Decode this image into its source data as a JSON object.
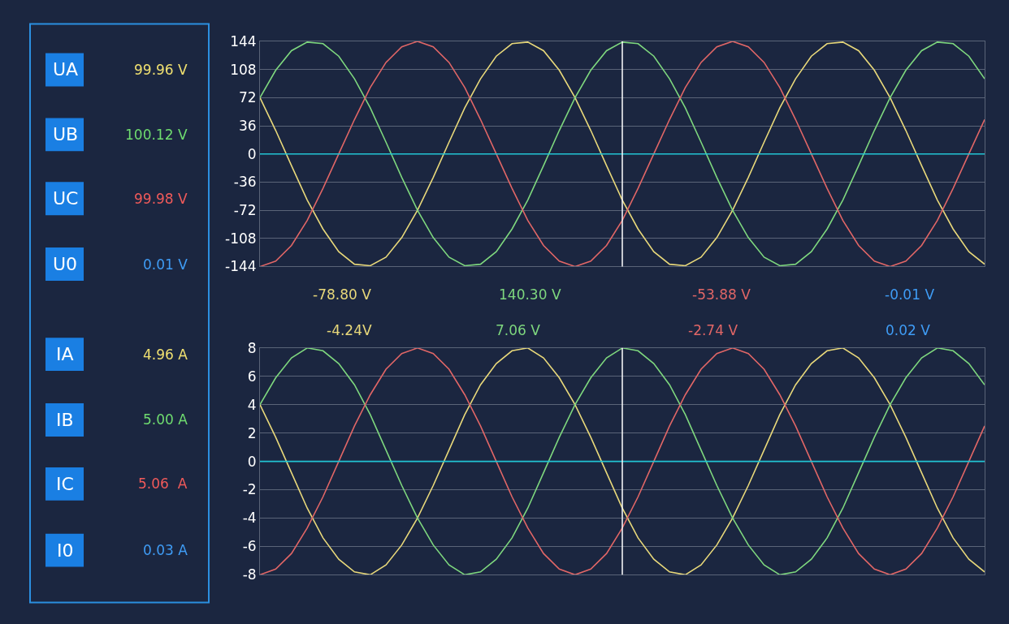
{
  "chart_data": [
    {
      "type": "other",
      "annotations": [
        "UA",
        "99.96 V",
        "UB",
        "100.12 V",
        "UC",
        "99.98 V",
        "U0",
        "0.01 V",
        "IA",
        "4.96 A",
        "IB",
        "5.00 A",
        "IC",
        "5.06  A",
        "I0",
        "0.03 A"
      ],
      "colors": [
        "#f0e070",
        "#6fdc6f",
        "#f05a5a",
        "#3f9cf5",
        "#f0e070",
        "#6fdc6f",
        "#f05a5a",
        "#3f9cf5"
      ]
    },
    {
      "type": "line",
      "categories": [
        null,
        null,
        null,
        null,
        null,
        null,
        null,
        null,
        null,
        null,
        null,
        null,
        null,
        null,
        null,
        null,
        null,
        null,
        null,
        null,
        null,
        null,
        null,
        null,
        null,
        null,
        null,
        null,
        null,
        null,
        null,
        null,
        null,
        null,
        null,
        null,
        null,
        null,
        null,
        null,
        null,
        null,
        null,
        null,
        null,
        null,
        null
      ],
      "series": [
        {
          "color": "#e8d87a",
          "values": [
            72,
            30,
            -15,
            -59,
            -96,
            -125,
            -141,
            -143,
            -132,
            -107,
            -72,
            -30,
            15,
            59,
            96,
            125,
            141,
            143,
            132,
            107,
            72,
            30,
            -15,
            -59,
            -96,
            -125,
            -141,
            -143,
            -132,
            -107,
            -72,
            -30,
            15,
            59,
            96,
            125,
            141,
            143,
            132,
            107,
            72,
            30,
            -15,
            -59,
            -96,
            -125,
            -141
          ]
        },
        {
          "color": "#7ed77e",
          "values": [
            72,
            107,
            132,
            143,
            141,
            125,
            96,
            59,
            15,
            -30,
            -72,
            -107,
            -132,
            -143,
            -141,
            -125,
            -96,
            -59,
            -15,
            30,
            72,
            107,
            132,
            143,
            141,
            125,
            96,
            59,
            15,
            -30,
            -72,
            -107,
            -132,
            -143,
            -141,
            -125,
            -96,
            -59,
            -15,
            30,
            72,
            107,
            132,
            143,
            141,
            125,
            96
          ]
        },
        {
          "color": "#e06666",
          "values": [
            -144,
            -137,
            -117,
            -85,
            -44,
            0,
            44,
            85,
            117,
            137,
            144,
            137,
            117,
            85,
            44,
            0,
            -44,
            -85,
            -117,
            -137,
            -144,
            -137,
            -117,
            -85,
            -44,
            0,
            44,
            85,
            117,
            137,
            144,
            137,
            117,
            85,
            44,
            0,
            -44,
            -85,
            -117,
            -137,
            -144,
            -137,
            -117,
            -85,
            -44,
            0,
            44
          ]
        },
        {
          "color": "#22c4d4",
          "values": [
            0,
            0,
            0,
            0,
            0,
            0,
            0,
            0,
            0,
            0,
            0,
            0,
            0,
            0,
            0,
            0,
            0,
            0,
            0,
            0,
            0,
            0,
            0,
            0,
            0,
            0,
            0,
            0,
            0,
            0,
            0,
            0,
            0,
            0,
            0,
            0,
            0,
            0,
            0,
            0,
            0,
            0,
            0,
            0,
            0,
            0,
            0
          ]
        }
      ],
      "ylim": [
        -144,
        144
      ],
      "yticks": [
        -144,
        -108,
        -72,
        -36,
        0,
        36,
        72,
        108,
        144
      ],
      "grid": "y",
      "tick_labels": "y",
      "annotations": [
        "-78.80 V",
        "140.30 V",
        "-53.88 V",
        "-0.01 V"
      ]
    },
    {
      "type": "line",
      "categories": [
        null,
        null,
        null,
        null,
        null,
        null,
        null,
        null,
        null,
        null,
        null,
        null,
        null,
        null,
        null,
        null,
        null,
        null,
        null,
        null,
        null,
        null,
        null,
        null,
        null,
        null,
        null,
        null,
        null,
        null,
        null,
        null,
        null,
        null,
        null,
        null,
        null,
        null,
        null,
        null,
        null,
        null,
        null,
        null,
        null,
        null,
        null
      ],
      "series": [
        {
          "color": "#e8d87a",
          "values": [
            4,
            1.7,
            -0.8,
            -3.3,
            -5.4,
            -6.9,
            -7.8,
            -8,
            -7.3,
            -5.9,
            -4,
            -1.7,
            0.8,
            3.3,
            5.4,
            6.9,
            7.8,
            8,
            7.3,
            5.9,
            4,
            1.7,
            -0.8,
            -3.3,
            -5.4,
            -6.9,
            -7.8,
            -8,
            -7.3,
            -5.9,
            -4,
            -1.7,
            0.8,
            3.3,
            5.4,
            6.9,
            7.8,
            8,
            7.3,
            5.9,
            4,
            1.7,
            -0.8,
            -3.3,
            -5.4,
            -6.9,
            -7.8
          ]
        },
        {
          "color": "#7ed77e",
          "values": [
            4,
            5.9,
            7.3,
            8,
            7.8,
            6.9,
            5.4,
            3.3,
            0.8,
            -1.7,
            -4,
            -5.9,
            -7.3,
            -8,
            -7.8,
            -6.9,
            -5.4,
            -3.3,
            -0.8,
            1.7,
            4,
            5.9,
            7.3,
            8,
            7.8,
            6.9,
            5.4,
            3.3,
            0.8,
            -1.7,
            -4,
            -5.9,
            -7.3,
            -8,
            -7.8,
            -6.9,
            -5.4,
            -3.3,
            -0.8,
            1.7,
            4,
            5.9,
            7.3,
            8,
            7.8,
            6.9,
            5.4
          ]
        },
        {
          "color": "#e06666",
          "values": [
            -8,
            -7.6,
            -6.5,
            -4.7,
            -2.5,
            0,
            2.5,
            4.7,
            6.5,
            7.6,
            8,
            7.6,
            6.5,
            4.7,
            2.5,
            0,
            -2.5,
            -4.7,
            -6.5,
            -7.6,
            -8,
            -7.6,
            -6.5,
            -4.7,
            -2.5,
            0,
            2.5,
            4.7,
            6.5,
            7.6,
            8,
            7.6,
            6.5,
            4.7,
            2.5,
            0,
            -2.5,
            -4.7,
            -6.5,
            -7.6,
            -8,
            -7.6,
            -6.5,
            -4.7,
            -2.5,
            0,
            2.5
          ]
        },
        {
          "color": "#22c4d4",
          "values": [
            0,
            0,
            0,
            0,
            0,
            0,
            0,
            0,
            0,
            0,
            0,
            0,
            0,
            0,
            0,
            0,
            0,
            0,
            0,
            0,
            0,
            0,
            0,
            0,
            0,
            0,
            0,
            0,
            0,
            0,
            0,
            0,
            0,
            0,
            0,
            0,
            0,
            0,
            0,
            0,
            0,
            0,
            0,
            0,
            0,
            0,
            0
          ]
        }
      ],
      "ylim": [
        -8,
        8
      ],
      "yticks": [
        -8,
        -6,
        -4,
        -2,
        0,
        2,
        4,
        6,
        8
      ],
      "grid": "y",
      "tick_labels": "y",
      "annotations": [
        "-4.24V",
        "7.06 V",
        "-2.74 V",
        "0.02 V"
      ]
    }
  ]
}
